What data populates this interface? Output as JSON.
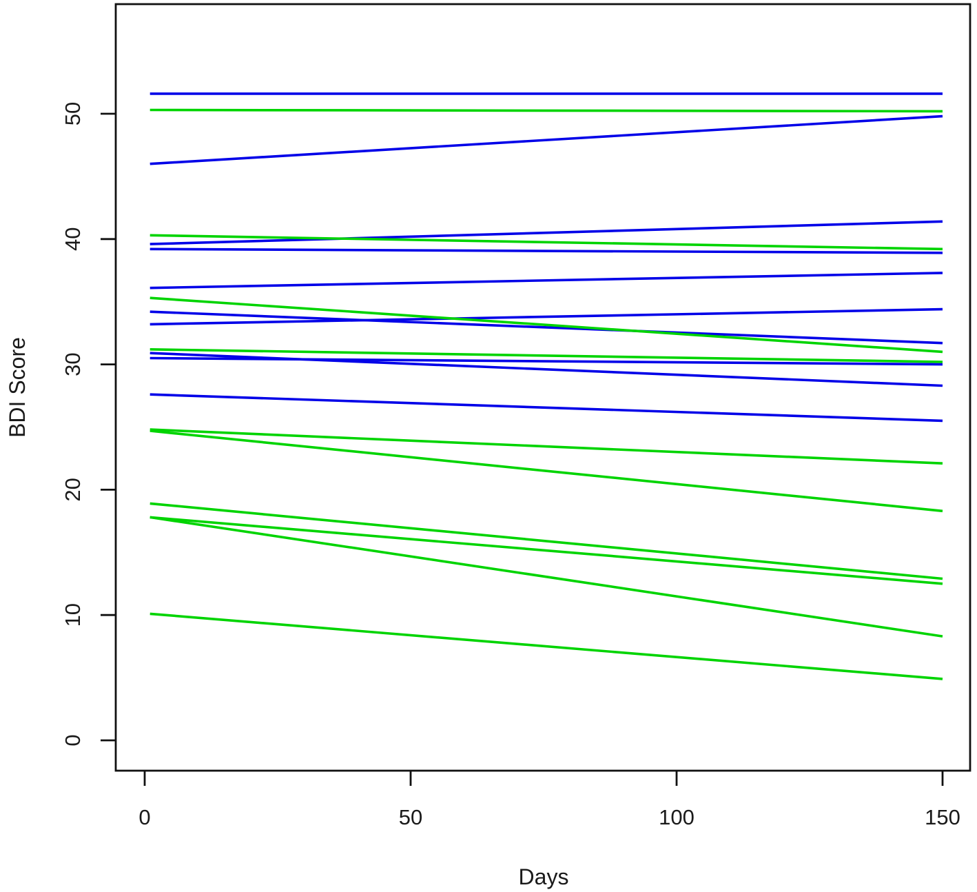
{
  "figure": {
    "background": "#ffffff",
    "description": "Spaghetti plot of individual linear BDI Score trajectories over Days for two groups (blue and green lines)"
  },
  "chart_data": {
    "type": "line",
    "title": "",
    "xlabel": "Days",
    "ylabel": "BDI Score",
    "x_ticks": [
      0,
      50,
      100,
      150
    ],
    "y_ticks": [
      0,
      10,
      20,
      30,
      40,
      50
    ],
    "xlim": [
      -5.5,
      155.5
    ],
    "ylim": [
      -2.5,
      58.8
    ],
    "grid": false,
    "legend": "none",
    "x_span_days": [
      1,
      150
    ],
    "colors": {
      "blue": "#0202e8",
      "green": "#00d400"
    },
    "series": [
      {
        "name": "blue-group",
        "color_key": "blue",
        "note": "each line is [BDI at day 1, BDI at day 150]",
        "lines": [
          [
            51.6,
            51.6
          ],
          [
            46.0,
            49.8
          ],
          [
            39.6,
            41.4
          ],
          [
            39.2,
            38.9
          ],
          [
            36.1,
            37.3
          ],
          [
            34.2,
            31.7
          ],
          [
            33.2,
            34.4
          ],
          [
            30.9,
            28.3
          ],
          [
            30.5,
            30.0
          ],
          [
            27.6,
            25.5
          ]
        ]
      },
      {
        "name": "green-group",
        "color_key": "green",
        "note": "each line is [BDI at day 1, BDI at day 150]",
        "lines": [
          [
            50.3,
            50.2
          ],
          [
            40.3,
            39.2
          ],
          [
            35.3,
            31.0
          ],
          [
            31.2,
            30.2
          ],
          [
            24.8,
            22.1
          ],
          [
            24.7,
            18.3
          ],
          [
            18.9,
            12.9
          ],
          [
            17.8,
            12.5
          ],
          [
            17.8,
            8.3
          ],
          [
            10.1,
            4.9
          ]
        ]
      }
    ]
  }
}
